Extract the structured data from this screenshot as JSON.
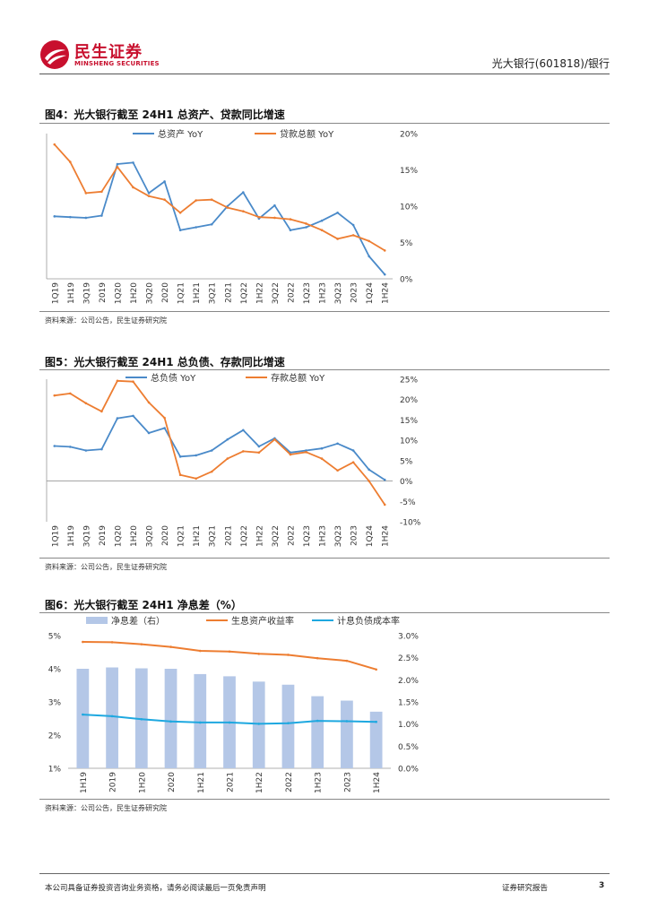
{
  "header": {
    "logo_cn": "民生证券",
    "logo_en": "MINSHENG SECURITIES",
    "report_tag": "光大银行(601818)/银行",
    "brand_color": "#c8102e"
  },
  "figures": [
    {
      "title": "图4：光大银行截至 24H1 总资产、贷款同比增速",
      "source": "资料来源：公司公告，民生证券研究院"
    },
    {
      "title": "图5：光大银行截至 24H1 总负债、存款同比增速",
      "source": "资料来源：公司公告，民生证券研究院"
    },
    {
      "title": "图6：光大银行截至 24H1 净息差（%）",
      "source": "资料来源：公司公告，民生证券研究院"
    }
  ],
  "footer": {
    "disclaimer": "本公司具备证券投资咨询业务资格，请务必阅读最后一页免责声明",
    "label": "证券研究报告",
    "page": "3"
  },
  "chart_data": [
    {
      "type": "line",
      "categories": [
        "1Q19",
        "1H19",
        "3Q19",
        "2019",
        "1Q20",
        "1H20",
        "3Q20",
        "2020",
        "1Q21",
        "1H21",
        "3Q21",
        "2021",
        "1Q22",
        "1H22",
        "3Q22",
        "2022",
        "1Q23",
        "1H23",
        "3Q23",
        "2023",
        "1Q24",
        "1H24"
      ],
      "series": [
        {
          "name": "总资产 YoY",
          "color": "#4a8ac9",
          "values": [
            8.6,
            8.5,
            8.4,
            8.7,
            15.8,
            16.0,
            11.8,
            13.4,
            6.7,
            7.1,
            7.5,
            10.0,
            11.9,
            8.3,
            10.1,
            6.7,
            7.1,
            8.0,
            9.1,
            7.4,
            3.1,
            0.6
          ]
        },
        {
          "name": "贷款总额 YoY",
          "color": "#ed7d31",
          "values": [
            18.5,
            16.1,
            11.8,
            12.0,
            15.4,
            12.6,
            11.4,
            10.9,
            9.1,
            10.8,
            10.9,
            9.8,
            9.3,
            8.5,
            8.4,
            8.2,
            7.6,
            6.7,
            5.5,
            6.0,
            5.2,
            3.9
          ]
        }
      ],
      "yticks": [
        "0%",
        "5%",
        "10%",
        "15%",
        "20%"
      ],
      "ylim": [
        0,
        20
      ],
      "y_axis_side": "right",
      "legend": "top"
    },
    {
      "type": "line",
      "categories": [
        "1Q19",
        "1H19",
        "3Q19",
        "2019",
        "1Q20",
        "1H20",
        "3Q20",
        "2020",
        "1Q21",
        "1H21",
        "3Q21",
        "2021",
        "1Q22",
        "1H22",
        "3Q22",
        "2022",
        "1Q23",
        "1H23",
        "3Q23",
        "2023",
        "1Q24",
        "1H24"
      ],
      "series": [
        {
          "name": "总负债 YoY",
          "color": "#4a8ac9",
          "values": [
            8.6,
            8.4,
            7.5,
            7.8,
            15.4,
            16.0,
            11.8,
            13.0,
            6.0,
            6.3,
            7.5,
            10.2,
            12.5,
            8.5,
            10.5,
            7.0,
            7.5,
            8.0,
            9.2,
            7.5,
            2.8,
            0.3
          ]
        },
        {
          "name": "存款总额 YoY",
          "color": "#ed7d31",
          "values": [
            21.0,
            21.5,
            19.1,
            17.1,
            24.6,
            24.4,
            19.3,
            15.5,
            1.5,
            0.6,
            2.3,
            5.5,
            7.3,
            7.0,
            10.2,
            6.5,
            7.1,
            5.5,
            2.6,
            4.6,
            0.0,
            -5.8
          ]
        }
      ],
      "yticks": [
        "-10%",
        "-5%",
        "0%",
        "5%",
        "10%",
        "15%",
        "20%",
        "25%"
      ],
      "ylim": [
        -10,
        25
      ],
      "y_axis_side": "right",
      "legend": "top"
    },
    {
      "type": "bar",
      "categories": [
        "1H19",
        "2019",
        "1H20",
        "2020",
        "1H21",
        "2021",
        "1H22",
        "2022",
        "1H23",
        "2023",
        "1H24"
      ],
      "series": [
        {
          "name": "净息差（右）",
          "type": "bar",
          "axis": "right",
          "color": "#b4c7e7",
          "values": [
            2.25,
            2.28,
            2.26,
            2.25,
            2.13,
            2.08,
            1.96,
            1.89,
            1.63,
            1.53,
            1.28
          ]
        },
        {
          "name": "生息资产收益率",
          "type": "line",
          "axis": "left",
          "color": "#ed7d31",
          "values": [
            4.81,
            4.8,
            4.74,
            4.66,
            4.54,
            4.52,
            4.45,
            4.42,
            4.32,
            4.24,
            3.98
          ]
        },
        {
          "name": "计息负债成本率",
          "type": "line",
          "axis": "left",
          "color": "#1ea8e0",
          "values": [
            2.62,
            2.57,
            2.48,
            2.41,
            2.38,
            2.38,
            2.34,
            2.36,
            2.43,
            2.42,
            2.4
          ]
        }
      ],
      "yticks_left": [
        "1%",
        "2%",
        "3%",
        "4%",
        "5%"
      ],
      "ylim_left": [
        1,
        5
      ],
      "yticks_right": [
        "0.0%",
        "0.5%",
        "1.0%",
        "1.5%",
        "2.0%",
        "2.5%",
        "3.0%"
      ],
      "ylim_right": [
        0,
        3
      ],
      "legend": "top"
    }
  ]
}
